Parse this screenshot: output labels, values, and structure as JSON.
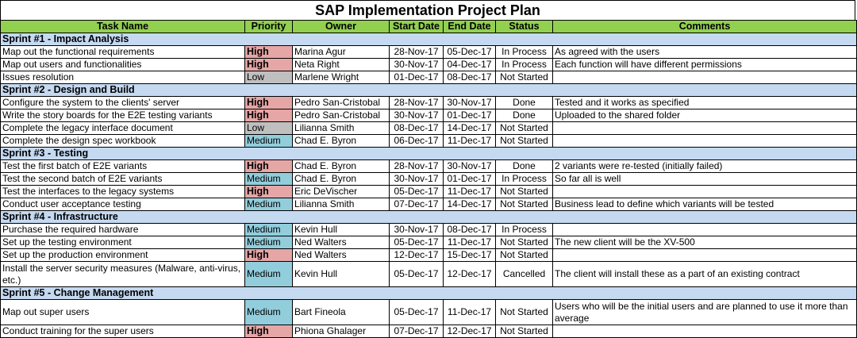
{
  "title": "SAP Implementation Project Plan",
  "columns": [
    "Task Name",
    "Priority",
    "Owner",
    "Start Date",
    "End Date",
    "Status",
    "Comments"
  ],
  "colors": {
    "header_green": "#92d050",
    "sprint_blue": "#c5d9f1",
    "high": "#e6a6a6",
    "medium": "#92cddc",
    "low": "#bfbfbf"
  },
  "sprints": [
    {
      "label": "Sprint #1 - Impact Analysis",
      "tasks": [
        {
          "task": "Map out the functional requirements",
          "priority": "High",
          "owner": "Marina Agur",
          "start": "28-Nov-17",
          "end": "05-Dec-17",
          "status": "In Process",
          "comments": "As agreed with the users"
        },
        {
          "task": "Map out users and functionalities",
          "priority": "High",
          "owner": "Neta Right",
          "start": "30-Nov-17",
          "end": "04-Dec-17",
          "status": "In Process",
          "comments": "Each function will have different permissions"
        },
        {
          "task": "Issues resolution",
          "priority": "Low",
          "owner": "Marlene Wright",
          "start": "01-Dec-17",
          "end": "08-Dec-17",
          "status": "Not Started",
          "comments": ""
        }
      ]
    },
    {
      "label": "Sprint #2 - Design and Build",
      "tasks": [
        {
          "task": "Configure the system to the clients' server",
          "priority": "High",
          "owner": "Pedro San-Cristobal",
          "start": "28-Nov-17",
          "end": "30-Nov-17",
          "status": "Done",
          "comments": "Tested and it works as specified"
        },
        {
          "task": "Write the story boards for the E2E testing variants",
          "priority": "High",
          "owner": "Pedro San-Cristobal",
          "start": "30-Nov-17",
          "end": "01-Dec-17",
          "status": "Done",
          "comments": "Uploaded to the shared folder"
        },
        {
          "task": "Complete the legacy interface document",
          "priority": "Low",
          "owner": "Lilianna Smith",
          "start": "08-Dec-17",
          "end": "14-Dec-17",
          "status": "Not Started",
          "comments": ""
        },
        {
          "task": "Complete the design spec workbook",
          "priority": "Medium",
          "owner": "Chad E. Byron",
          "start": "06-Dec-17",
          "end": "11-Dec-17",
          "status": "Not Started",
          "comments": ""
        }
      ]
    },
    {
      "label": "Sprint #3 - Testing",
      "tasks": [
        {
          "task": "Test the first batch of E2E variants",
          "priority": "High",
          "owner": "Chad E. Byron",
          "start": "28-Nov-17",
          "end": "30-Nov-17",
          "status": "Done",
          "comments": "2 variants were re-tested (initially failed)"
        },
        {
          "task": "Test the second batch of E2E variants",
          "priority": "Medium",
          "owner": "Chad E. Byron",
          "start": "30-Nov-17",
          "end": "01-Dec-17",
          "status": "In Process",
          "comments": "So far all is well"
        },
        {
          "task": "Test the interfaces to the legacy systems",
          "priority": "High",
          "owner": "Eric DeVischer",
          "start": "05-Dec-17",
          "end": "11-Dec-17",
          "status": "Not Started",
          "comments": ""
        },
        {
          "task": "Conduct user acceptance testing",
          "priority": "Medium",
          "owner": "Lilianna Smith",
          "start": "07-Dec-17",
          "end": "14-Dec-17",
          "status": "Not Started",
          "comments": "Business lead to define which variants will be tested"
        }
      ]
    },
    {
      "label": "Sprint #4 - Infrastructure",
      "tasks": [
        {
          "task": "Purchase the required hardware",
          "priority": "Medium",
          "owner": "Kevin Hull",
          "start": "30-Nov-17",
          "end": "08-Dec-17",
          "status": "In Process",
          "comments": ""
        },
        {
          "task": "Set up the testing environment",
          "priority": "Medium",
          "owner": "Ned Walters",
          "start": "05-Dec-17",
          "end": "11-Dec-17",
          "status": "Not Started",
          "comments": "The new client will be the XV-500"
        },
        {
          "task": "Set up the production environment",
          "priority": "High",
          "owner": "Ned Walters",
          "start": "12-Dec-17",
          "end": "15-Dec-17",
          "status": "Not Started",
          "comments": ""
        },
        {
          "task": "Install the server security measures (Malware, anti-virus, etc.)",
          "priority": "Medium",
          "owner": "Kevin Hull",
          "start": "05-Dec-17",
          "end": "12-Dec-17",
          "status": "Cancelled",
          "comments": "The client will install these as a part of an existing contract"
        }
      ]
    },
    {
      "label": "Sprint #5 - Change Management",
      "tasks": [
        {
          "task": "Map out super users",
          "priority": "Medium",
          "owner": "Bart Fineola",
          "start": "05-Dec-17",
          "end": "11-Dec-17",
          "status": "Not Started",
          "comments": "Users who will be the initial users and are planned to use it more than average"
        },
        {
          "task": "Conduct training for the super users",
          "priority": "High",
          "owner": "Phiona Ghalager",
          "start": "07-Dec-17",
          "end": "12-Dec-17",
          "status": "Not Started",
          "comments": ""
        }
      ]
    }
  ]
}
